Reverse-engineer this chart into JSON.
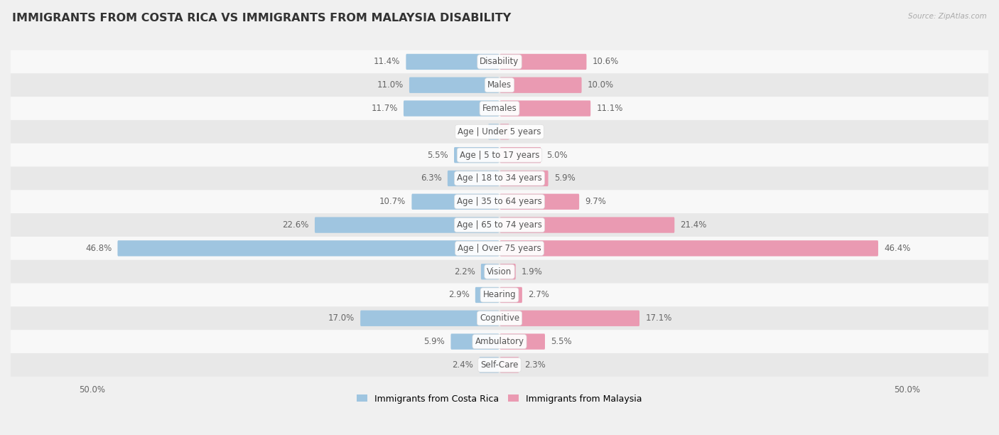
{
  "title": "IMMIGRANTS FROM COSTA RICA VS IMMIGRANTS FROM MALAYSIA DISABILITY",
  "source": "Source: ZipAtlas.com",
  "categories": [
    "Disability",
    "Males",
    "Females",
    "Age | Under 5 years",
    "Age | 5 to 17 years",
    "Age | 18 to 34 years",
    "Age | 35 to 64 years",
    "Age | 65 to 74 years",
    "Age | Over 75 years",
    "Vision",
    "Hearing",
    "Cognitive",
    "Ambulatory",
    "Self-Care"
  ],
  "costa_rica": [
    11.4,
    11.0,
    11.7,
    1.3,
    5.5,
    6.3,
    10.7,
    22.6,
    46.8,
    2.2,
    2.9,
    17.0,
    5.9,
    2.4
  ],
  "malaysia": [
    10.6,
    10.0,
    11.1,
    1.1,
    5.0,
    5.9,
    9.7,
    21.4,
    46.4,
    1.9,
    2.7,
    17.1,
    5.5,
    2.3
  ],
  "color_costa_rica": "#9fc5e0",
  "color_malaysia": "#ea9ab2",
  "axis_limit": 50.0,
  "bg_color": "#f0f0f0",
  "row_bg_even": "#e8e8e8",
  "row_bg_odd": "#f8f8f8",
  "label_fontsize": 8.5,
  "title_fontsize": 11.5,
  "legend_labels": [
    "Immigrants from Costa Rica",
    "Immigrants from Malaysia"
  ],
  "value_color": "#666666"
}
